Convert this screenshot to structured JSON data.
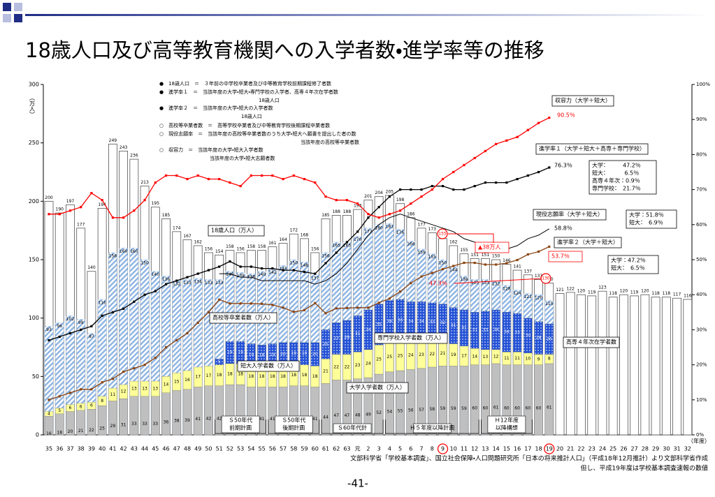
{
  "chart_data": {
    "type": "bar",
    "title": "18歳人口及び高等教育機関への入学者数・進学率等の推移",
    "y_label": "（万人）",
    "x_label": "（年度）",
    "categories": [
      "35",
      "36",
      "37",
      "38",
      "39",
      "40",
      "41",
      "42",
      "43",
      "44",
      "45",
      "46",
      "47",
      "48",
      "49",
      "50",
      "51",
      "52",
      "53",
      "54",
      "55",
      "56",
      "57",
      "58",
      "59",
      "60",
      "61",
      "62",
      "63",
      "元",
      "2",
      "3",
      "4",
      "5",
      "6",
      "7",
      "8",
      "9",
      "10",
      "11",
      "12",
      "13",
      "14",
      "15",
      "16",
      "17",
      "18",
      "19",
      "20",
      "21",
      "22",
      "23",
      "24",
      "25",
      "26",
      "27",
      "28",
      "29",
      "30",
      "31",
      "32"
    ],
    "ylim": [
      0,
      300
    ],
    "yticks": [
      0,
      50,
      100,
      150,
      200,
      250,
      300
    ],
    "y2lim": [
      0,
      100
    ],
    "y2ticks": [
      {
        "value": 0,
        "label": "0%"
      },
      {
        "value": 10,
        "label": "10%"
      },
      {
        "value": 20,
        "label": "20%"
      },
      {
        "value": 30,
        "label": "30%"
      },
      {
        "value": 40,
        "label": "40%"
      },
      {
        "value": 50,
        "label": "50%"
      },
      {
        "value": 60,
        "label": "60%"
      },
      {
        "value": 70,
        "label": "70%"
      },
      {
        "value": 80,
        "label": "80%"
      },
      {
        "value": 90,
        "label": "90%"
      },
      {
        "value": 100,
        "label": "100%"
      }
    ],
    "series": [
      {
        "name": "18歳人口（万人）",
        "type": "outline",
        "color": "#ffffff",
        "values": [
          200,
          190,
          197,
          177,
          140,
          194,
          249,
          243,
          236,
          213,
          195,
          185,
          174,
          167,
          162,
          156,
          154,
          158,
          156,
          158,
          158,
          161,
          164,
          172,
          168,
          156,
          185,
          188,
          188,
          193,
          201,
          204,
          205,
          198,
          186,
          177,
          173,
          168,
          162,
          155,
          151,
          151,
          150,
          146,
          141,
          137,
          133,
          130,
          121,
          122,
          120,
          119,
          123,
          118,
          120,
          119,
          120,
          118,
          118,
          117,
          116
        ]
      },
      {
        "name": "高校等卒業者数（万人）",
        "type": "hatch",
        "color": "#8db4e2",
        "values": [
          93,
          96,
          102,
          99,
          87,
          116,
          156,
          160,
          160,
          150,
          140,
          136,
          132,
          133,
          134,
          133,
          133,
          140,
          139,
          138,
          140,
          142,
          145,
          150,
          148,
          137,
          156,
          165,
          165,
          170,
          177,
          180,
          181,
          176,
          166,
          159,
          155,
          150,
          144,
          136,
          133,
          133,
          132,
          128,
          124,
          121,
          120,
          115,
          null,
          null,
          null,
          null,
          null,
          null,
          null,
          null,
          null,
          null,
          null,
          null,
          null
        ]
      },
      {
        "name": "大学入学者数（万人）",
        "type": "bar",
        "color": "#bfbfbf",
        "values": [
          16,
          18,
          20,
          21,
          22,
          25,
          29,
          31,
          33,
          33,
          33,
          36,
          38,
          39,
          41,
          42,
          42,
          43,
          43,
          41,
          41,
          41,
          41,
          42,
          42,
          41,
          44,
          47,
          47,
          48,
          49,
          52,
          54,
          55,
          56,
          57,
          58,
          59,
          59,
          59,
          60,
          60,
          61,
          60,
          60,
          60,
          60,
          61,
          null,
          null,
          null,
          null,
          null,
          null,
          null,
          null,
          null,
          null,
          null,
          null,
          null
        ]
      },
      {
        "name": "短大入学者数（万人）",
        "type": "bar",
        "color": "#ffff99",
        "values": [
          4,
          5,
          6,
          6,
          6,
          8,
          11,
          12,
          13,
          13,
          13,
          14,
          15,
          16,
          17,
          17,
          18,
          18,
          18,
          18,
          18,
          18,
          18,
          18,
          18,
          18,
          21,
          22,
          22,
          23,
          24,
          25,
          25,
          25,
          24,
          23,
          22,
          21,
          19,
          17,
          14,
          13,
          12,
          11,
          11,
          10,
          9,
          8,
          null,
          null,
          null,
          null,
          null,
          null,
          null,
          null,
          null,
          null,
          null,
          null,
          null
        ]
      },
      {
        "name": "専門学校入学者数（万人）",
        "type": "bar",
        "color": "#2452d6",
        "values": [
          null,
          null,
          null,
          null,
          null,
          null,
          null,
          null,
          null,
          null,
          null,
          null,
          null,
          null,
          null,
          null,
          5,
          19,
          19,
          19,
          18,
          19,
          20,
          19,
          19,
          20,
          25,
          27,
          29,
          31,
          34,
          35,
          36,
          36,
          34,
          34,
          33,
          32,
          31,
          31,
          31,
          33,
          34,
          34,
          33,
          30,
          28,
          26,
          null,
          null,
          null,
          null,
          null,
          null,
          null,
          null,
          null,
          null,
          null,
          null,
          null
        ]
      },
      {
        "name": "進学率１（大学＋短大＋高専＋専門学校）",
        "type": "line",
        "axis": "y2",
        "color": "#000000",
        "values": [
          27,
          28,
          29,
          30,
          31,
          34,
          35,
          36,
          38,
          40,
          41,
          43,
          44,
          45,
          46,
          47,
          48,
          49.5,
          48,
          48,
          47.5,
          47.5,
          47,
          47,
          46.5,
          46,
          49,
          52,
          55,
          58,
          62,
          65,
          68,
          70,
          70,
          70,
          71,
          71,
          70,
          70,
          71,
          72,
          72,
          72,
          73,
          74,
          75,
          76.3,
          null,
          null,
          null,
          null,
          null,
          null,
          null,
          null,
          null,
          null,
          null,
          null,
          null
        ]
      },
      {
        "name": "現役志願率（大学＋短大）",
        "type": "line",
        "axis": "y2",
        "color": "#000000",
        "values": [
          null,
          null,
          null,
          null,
          null,
          null,
          null,
          null,
          null,
          null,
          null,
          null,
          null,
          null,
          null,
          null,
          46,
          46,
          45,
          45,
          44,
          44,
          44,
          44,
          44,
          43,
          44,
          46,
          49,
          53,
          57,
          60,
          62,
          63,
          62,
          61,
          60,
          59,
          58,
          56,
          55,
          54,
          54,
          53,
          54,
          56,
          57,
          58.8,
          null,
          null,
          null,
          null,
          null,
          null,
          null,
          null,
          null,
          null,
          null,
          null,
          null
        ]
      },
      {
        "name": "進学率２（大学＋短大）",
        "type": "line",
        "axis": "y2",
        "color": "#8b4513",
        "values": [
          10,
          11,
          12,
          13,
          13,
          15,
          16,
          18,
          19,
          20,
          22,
          25,
          27,
          29,
          32,
          35,
          38.6,
          37.5,
          37.5,
          37.5,
          37.4,
          37.1,
          36.3,
          35.1,
          35.6,
          37.6,
          34.7,
          36.1,
          36.2,
          36.3,
          36.3,
          37.7,
          38.9,
          40.9,
          43.3,
          45.2,
          46.2,
          47.3,
          48.2,
          49.1,
          49.1,
          48.6,
          48.6,
          49.0,
          49.9,
          51.5,
          52.3,
          53.7,
          null,
          null,
          null,
          null,
          null,
          null,
          null,
          null,
          null,
          null,
          null,
          null,
          null
        ]
      },
      {
        "name": "収容力（大学＋短大）",
        "type": "line",
        "axis": "y2",
        "color": "#ff0000",
        "values": [
          63,
          63,
          64,
          65,
          69,
          67,
          62,
          62,
          64,
          67,
          72,
          74,
          74,
          73,
          74,
          73,
          73,
          72,
          71,
          74,
          74,
          74,
          73,
          74,
          73,
          72,
          68,
          67,
          67,
          66,
          63,
          62,
          63,
          64,
          66,
          68,
          70,
          73,
          75,
          77,
          79,
          81,
          83,
          84,
          85,
          87,
          89,
          90.5,
          null,
          null,
          null,
          null,
          null,
          null,
          null,
          null,
          null,
          null,
          null,
          null,
          null
        ]
      }
    ],
    "notes": [
      {
        "text": "●　18歳人口　＝　３年前の中学校卒業者及び中等教育学校前期課程修了者数"
      },
      {
        "text": "●　進学率１　＝　当該年度の大学・短大・専門学校の入学者、高専４年次在学者数",
        "denominator": "18歳人口"
      },
      {
        "text": "●　進学率２　＝　当該年度の大学・短大の入学者数",
        "denominator": "18歳人口"
      },
      {
        "text": "○　高校等卒業者数　＝　高等学校卒業者及び中等教育学校後期課程卒業者数"
      },
      {
        "text": "○　現役志願率　＝　当該年度の高校等卒業者数のうち大学・短大へ願書を提出した者の数",
        "denominator": "当該年度の高校等卒業者数"
      },
      {
        "text": "○　収容力　＝　当該年度の大学・短大入学者数",
        "denominator": "当該年度の大学・短大志願者数"
      }
    ],
    "annotations": [
      {
        "text": "90.5％",
        "color": "#ff0000"
      },
      {
        "text": "76.3％"
      },
      {
        "text": "58.8％"
      },
      {
        "text": "53.7％",
        "color": "#ff0000"
      },
      {
        "text": "47.3％",
        "color": "#ff0000"
      },
      {
        "text": "▲38万人",
        "color": "#ff0000"
      },
      {
        "text": "155",
        "color": "#ff0000"
      },
      {
        "text": "130",
        "color": "#ff0000"
      },
      {
        "lines": [
          "大学：　　　47.2％",
          "短大：　　　 6.5％",
          "高専４年次：0.9％",
          "専門学校：　21.7％"
        ]
      },
      {
        "lines": [
          "大学：51.8％",
          "短大：　6.9％"
        ]
      },
      {
        "lines": [
          "大学：47.2％",
          "短大：　6.5％"
        ]
      },
      {
        "text": "高専４年次在学者数"
      }
    ],
    "periods": [
      {
        "lines": [
          "Ｓ50年代",
          "前期計画"
        ]
      },
      {
        "lines": [
          "Ｓ50年代",
          "後期計画"
        ]
      },
      {
        "lines": [
          "Ｓ60年代計"
        ]
      },
      {
        "lines": [
          "Ｈ５年度以降計画"
        ]
      },
      {
        "lines": [
          "Ｈ12年度",
          "以降構想"
        ]
      }
    ],
    "source": [
      "文部科学省「学校基本調査」、国立社会保障・人口問題研究所「日本の将来推計人口」（平成18年12月推計）より文部科学省作成",
      "但し、平成19年度は学校基本調査速報の数値"
    ],
    "page": "-41-"
  }
}
